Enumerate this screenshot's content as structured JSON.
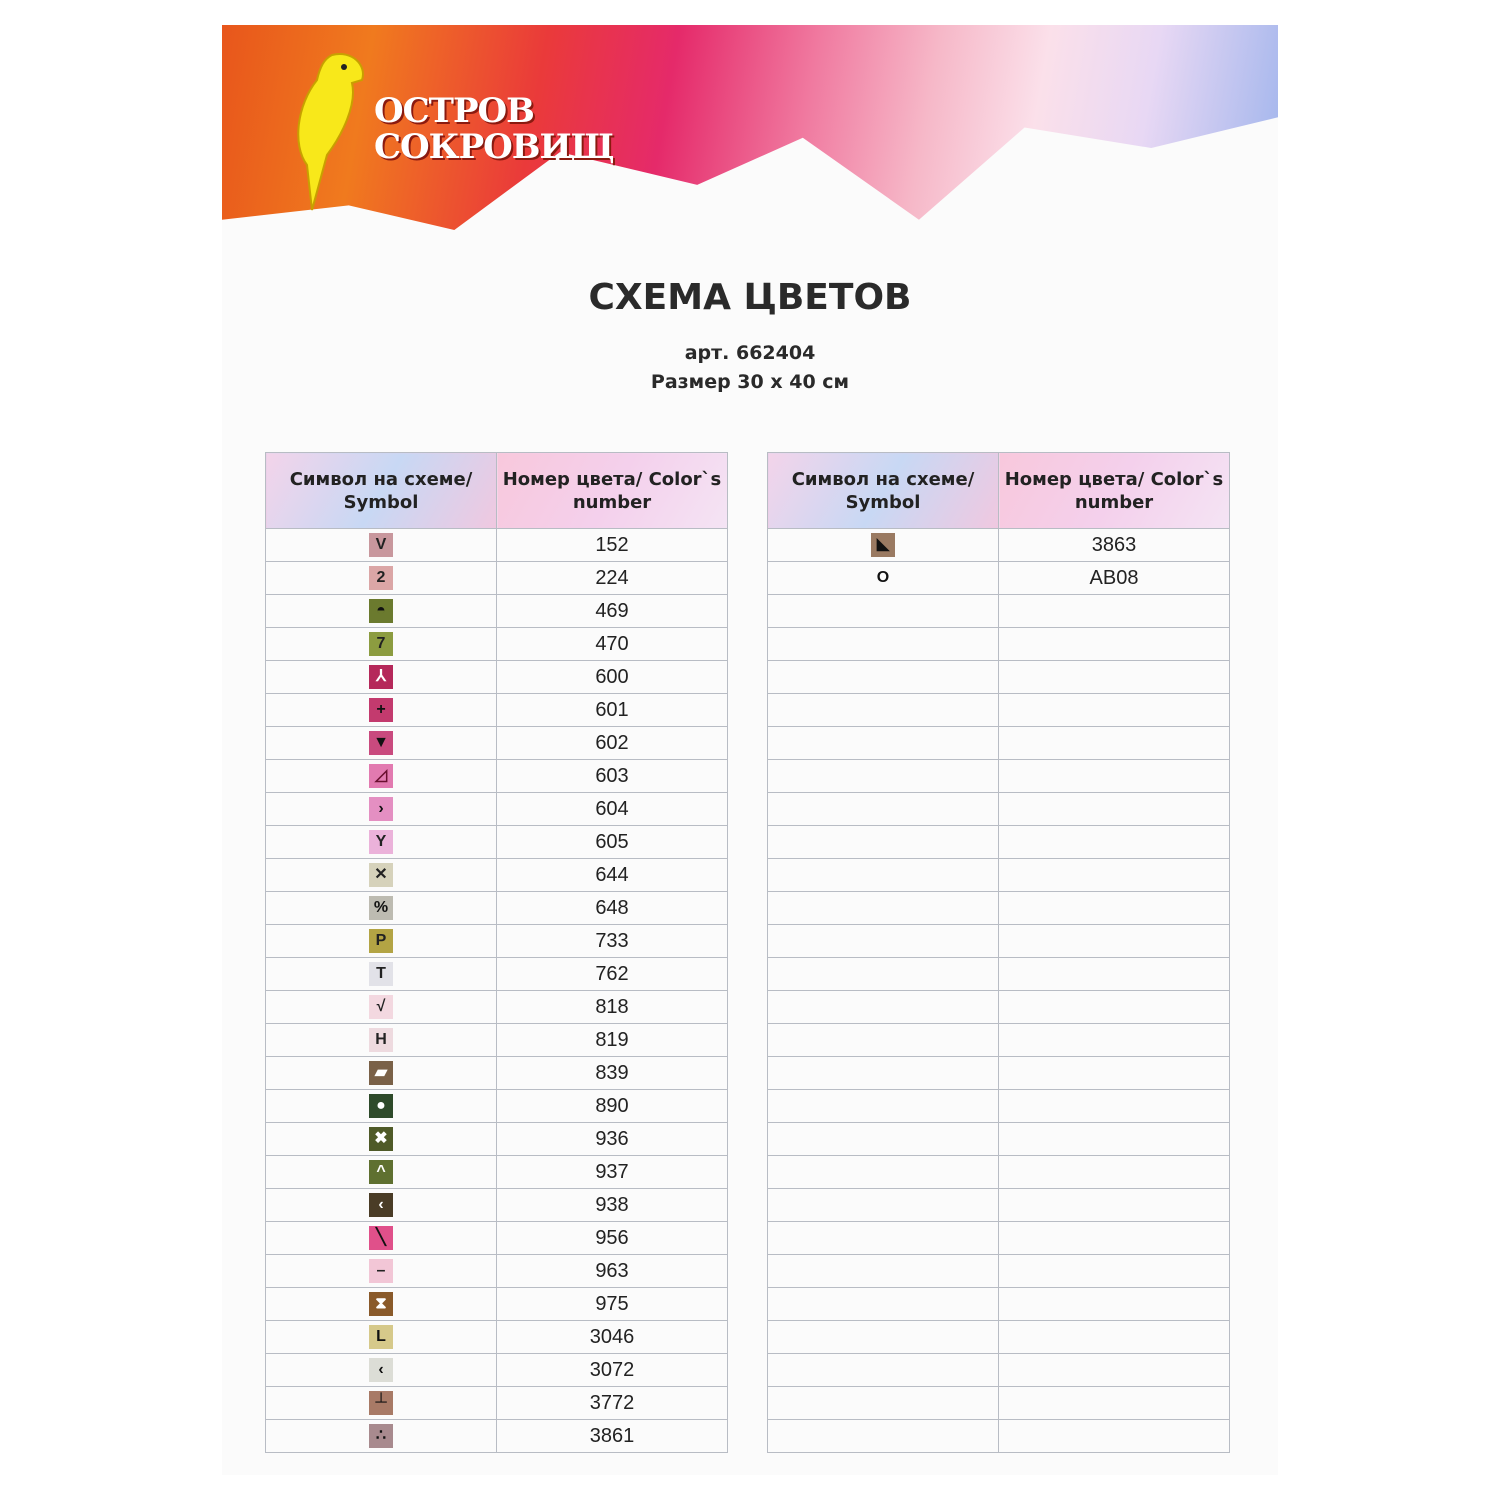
{
  "brand": {
    "name_line1": "ОСТРОВ",
    "name_line2": "СОКРОВИЩ",
    "registered": "®"
  },
  "title": "СХЕМА ЦВЕТОВ",
  "article": "арт. 662404",
  "size": "Размер 30 x 40 см",
  "headers": {
    "symbol": "Символ на схеме/ Symbol",
    "color": "Номер цвета/ Color`s number"
  },
  "left_rows": [
    {
      "symbol": "V",
      "color": "152",
      "swatch": "#c8979d",
      "fg": "#222"
    },
    {
      "symbol": "2",
      "color": "224",
      "swatch": "#dba6a6",
      "fg": "#222"
    },
    {
      "symbol": "◓",
      "color": "469",
      "swatch": "#6b7a2e",
      "fg": "#111"
    },
    {
      "symbol": "7",
      "color": "470",
      "swatch": "#8c9c40",
      "fg": "#222"
    },
    {
      "symbol": "⅄",
      "color": "600",
      "swatch": "#b5285a",
      "fg": "#fff"
    },
    {
      "symbol": "+",
      "color": "601",
      "swatch": "#c33a6e",
      "fg": "#111"
    },
    {
      "symbol": "▼",
      "color": "602",
      "swatch": "#c94a7e",
      "fg": "#111"
    },
    {
      "symbol": "◿",
      "color": "603",
      "swatch": "#e27ab0",
      "fg": "#6a1030"
    },
    {
      "symbol": "›",
      "color": "604",
      "swatch": "#e48fc2",
      "fg": "#111"
    },
    {
      "symbol": "Y",
      "color": "605",
      "swatch": "#ebb2da",
      "fg": "#222"
    },
    {
      "symbol": "✕",
      "color": "644",
      "swatch": "#d6d2bb",
      "fg": "#222"
    },
    {
      "symbol": "%",
      "color": "648",
      "swatch": "#bdbbb1",
      "fg": "#111"
    },
    {
      "symbol": "P",
      "color": "733",
      "swatch": "#b3a444",
      "fg": "#222"
    },
    {
      "symbol": "T",
      "color": "762",
      "swatch": "#e2e2e8",
      "fg": "#222"
    },
    {
      "symbol": "√",
      "color": "818",
      "swatch": "#f3d8e0",
      "fg": "#222"
    },
    {
      "symbol": "H",
      "color": "819",
      "swatch": "#eedadf",
      "fg": "#222"
    },
    {
      "symbol": "▰",
      "color": "839",
      "swatch": "#7a6148",
      "fg": "#fff"
    },
    {
      "symbol": "●",
      "color": "890",
      "swatch": "#2e4a2a",
      "fg": "#fff"
    },
    {
      "symbol": "✖",
      "color": "936",
      "swatch": "#4f5a28",
      "fg": "#fff"
    },
    {
      "symbol": "^",
      "color": "937",
      "swatch": "#5f7030",
      "fg": "#fff"
    },
    {
      "symbol": "‹",
      "color": "938",
      "swatch": "#4a3c26",
      "fg": "#fff"
    },
    {
      "symbol": "╲",
      "color": "956",
      "swatch": "#e0508a",
      "fg": "#111"
    },
    {
      "symbol": "–",
      "color": "963",
      "swatch": "#f2c6d6",
      "fg": "#222"
    },
    {
      "symbol": "⧗",
      "color": "975",
      "swatch": "#8a5a2a",
      "fg": "#fff"
    },
    {
      "symbol": "L",
      "color": "3046",
      "swatch": "#d6c98a",
      "fg": "#111"
    },
    {
      "symbol": "‹",
      "color": "3072",
      "swatch": "#dcddd6",
      "fg": "#111"
    },
    {
      "symbol": "┴",
      "color": "3772",
      "swatch": "#a87a66",
      "fg": "#111"
    },
    {
      "symbol": "∴",
      "color": "3861",
      "swatch": "#a88a8e",
      "fg": "#111"
    }
  ],
  "right_rows": [
    {
      "symbol": "◣",
      "color": "3863",
      "swatch": "#9a7a62",
      "fg": "#111"
    },
    {
      "symbol": "O",
      "color": "AB08",
      "swatch": "",
      "fg": "#111"
    }
  ]
}
